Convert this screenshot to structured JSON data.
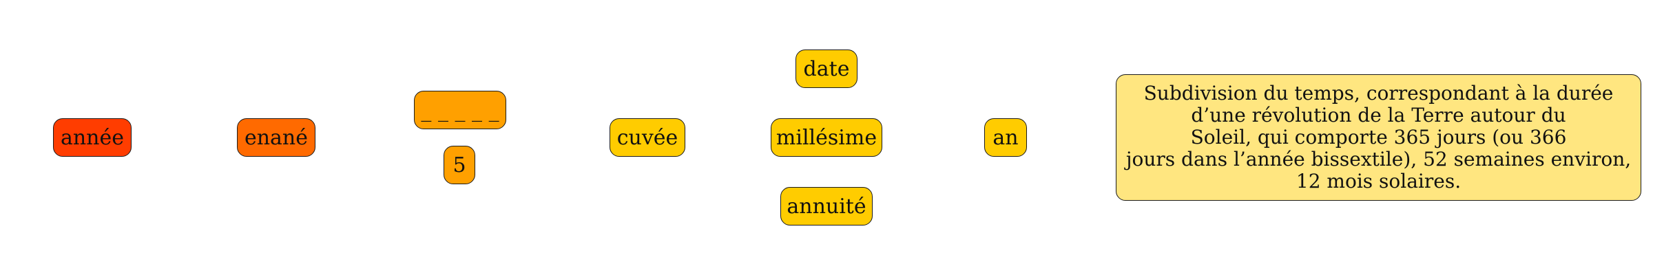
{
  "nodes": {
    "annee": {
      "label": "année",
      "color": "#ff3d00"
    },
    "enane": {
      "label": "enané",
      "color": "#ff6a00"
    },
    "blank": {
      "label": "_ _ _ _ _",
      "color": "#ffa000"
    },
    "count": {
      "label": "5",
      "color": "#ffa000"
    },
    "cuvee": {
      "label": "cuvée",
      "color": "#ffcc00"
    },
    "date": {
      "label": "date",
      "color": "#ffcc00"
    },
    "millesime": {
      "label": "millésime",
      "color": "#ffcc00"
    },
    "annuite": {
      "label": "annuité",
      "color": "#ffcc00"
    },
    "an": {
      "label": "an",
      "color": "#ffcc00"
    }
  },
  "definition": {
    "color": "#ffe680",
    "lines": [
      "Subdivision du temps, correspondant à la durée",
      "d’une révolution de la Terre autour du",
      "Soleil, qui comporte 365 jours (ou 366",
      "jours dans l’année bissextile), 52 semaines environ,",
      "12 mois solaires."
    ]
  }
}
